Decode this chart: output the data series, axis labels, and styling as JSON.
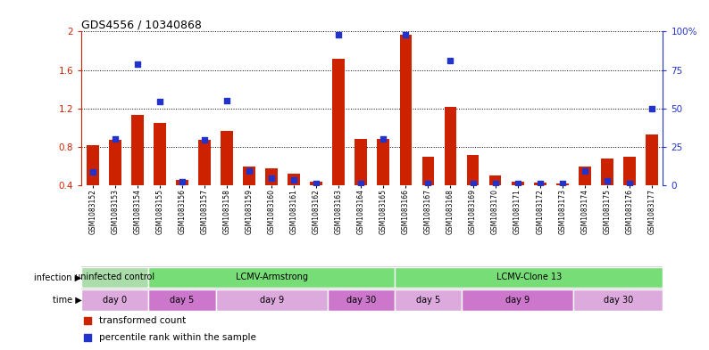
{
  "title": "GDS4556 / 10340868",
  "samples": [
    "GSM1083152",
    "GSM1083153",
    "GSM1083154",
    "GSM1083155",
    "GSM1083156",
    "GSM1083157",
    "GSM1083158",
    "GSM1083159",
    "GSM1083160",
    "GSM1083161",
    "GSM1083162",
    "GSM1083163",
    "GSM1083164",
    "GSM1083165",
    "GSM1083166",
    "GSM1083167",
    "GSM1083168",
    "GSM1083169",
    "GSM1083170",
    "GSM1083171",
    "GSM1083172",
    "GSM1083173",
    "GSM1083174",
    "GSM1083175",
    "GSM1083176",
    "GSM1083177"
  ],
  "red_values": [
    0.82,
    0.87,
    1.13,
    1.05,
    0.46,
    0.87,
    0.97,
    0.6,
    0.58,
    0.52,
    0.44,
    1.72,
    0.88,
    0.88,
    1.97,
    0.7,
    1.22,
    0.72,
    0.5,
    0.44,
    0.43,
    0.42,
    0.6,
    0.68,
    0.7,
    0.93
  ],
  "blue_values": [
    0.54,
    0.88,
    1.66,
    1.27,
    0.44,
    0.87,
    1.28,
    0.55,
    0.48,
    0.46,
    0.42,
    1.97,
    0.42,
    0.88,
    1.97,
    0.42,
    1.7,
    0.42,
    0.42,
    0.42,
    0.42,
    0.42,
    0.55,
    0.45,
    0.42,
    1.2
  ],
  "ylim_left": [
    0.4,
    2.0
  ],
  "yticks_left": [
    0.4,
    0.8,
    1.2,
    1.6,
    2.0
  ],
  "ytick_left_labels": [
    "0.4",
    "0.8",
    "1.2",
    "1.6",
    "2"
  ],
  "ytick_right_labels": [
    "0",
    "25",
    "50",
    "75",
    "100%"
  ],
  "bar_color": "#cc2200",
  "dot_color": "#2233cc",
  "infection_groups": [
    {
      "text": "uninfected control",
      "start": 0,
      "end": 3,
      "color": "#aaddaa"
    },
    {
      "text": "LCMV-Armstrong",
      "start": 3,
      "end": 14,
      "color": "#77dd77"
    },
    {
      "text": "LCMV-Clone 13",
      "start": 14,
      "end": 26,
      "color": "#77dd77"
    }
  ],
  "time_groups": [
    {
      "text": "day 0",
      "start": 0,
      "end": 3,
      "color": "#ddaadd"
    },
    {
      "text": "day 5",
      "start": 3,
      "end": 6,
      "color": "#cc77cc"
    },
    {
      "text": "day 9",
      "start": 6,
      "end": 11,
      "color": "#ddaadd"
    },
    {
      "text": "day 30",
      "start": 11,
      "end": 14,
      "color": "#cc77cc"
    },
    {
      "text": "day 5",
      "start": 14,
      "end": 17,
      "color": "#ddaadd"
    },
    {
      "text": "day 9",
      "start": 17,
      "end": 22,
      "color": "#cc77cc"
    },
    {
      "text": "day 30",
      "start": 22,
      "end": 26,
      "color": "#ddaadd"
    }
  ],
  "bg_color": "#ffffff"
}
